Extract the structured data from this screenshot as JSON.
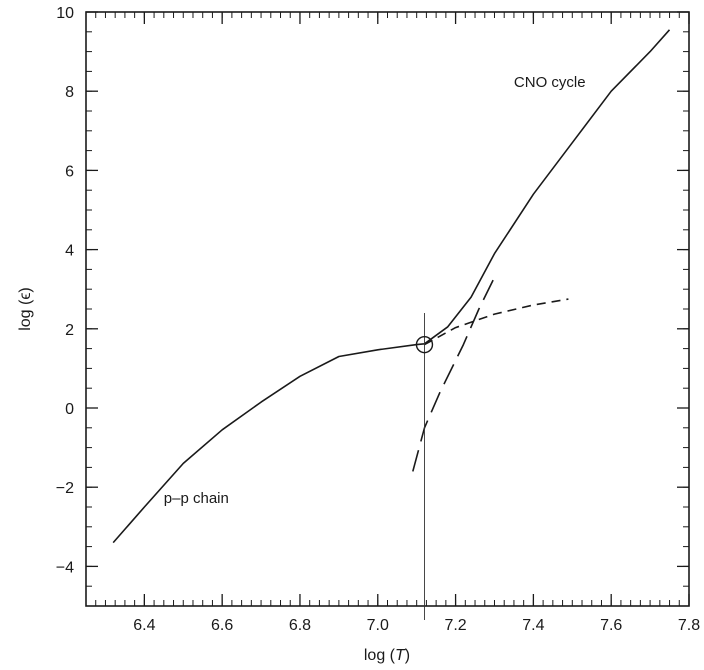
{
  "chart_data": {
    "type": "line",
    "title": "",
    "xlabel": "log (T)",
    "ylabel": "log (ϵ)",
    "xlim": [
      6.25,
      7.8
    ],
    "ylim": [
      -5,
      10
    ],
    "xticks": [
      6.4,
      6.6,
      6.8,
      7.0,
      7.2,
      7.4,
      7.6,
      7.8
    ],
    "xtick_labels": [
      "6.4",
      "6.6",
      "6.8",
      "7.0",
      "7.2",
      "7.4",
      "7.6",
      "7.8"
    ],
    "yticks": [
      -4,
      -2,
      0,
      2,
      4,
      6,
      8,
      10
    ],
    "ytick_labels": [
      "−4",
      "−2",
      "0",
      "2",
      "4",
      "6",
      "8",
      "10"
    ],
    "grid": false,
    "series": [
      {
        "style": "solid",
        "x": [
          6.32,
          6.4,
          6.5,
          6.6,
          6.7,
          6.8,
          6.9,
          7.0,
          7.1,
          7.12,
          7.18,
          7.24,
          7.3,
          7.4,
          7.5,
          7.6,
          7.7,
          7.75
        ],
        "y": [
          -3.4,
          -2.5,
          -1.4,
          -0.55,
          0.15,
          0.8,
          1.3,
          1.47,
          1.6,
          1.62,
          2.05,
          2.8,
          3.9,
          5.4,
          6.7,
          8.0,
          9.0,
          9.55
        ]
      },
      {
        "style": "short-dash",
        "x": [
          7.12,
          7.2,
          7.3,
          7.4,
          7.49
        ],
        "y": [
          1.6,
          2.03,
          2.37,
          2.6,
          2.75
        ]
      },
      {
        "style": "long-dash",
        "x": [
          7.09,
          7.12,
          7.16,
          7.22,
          7.26,
          7.3
        ],
        "y": [
          -1.6,
          -0.5,
          0.4,
          1.6,
          2.5,
          3.3
        ]
      }
    ],
    "crossover": {
      "x": 7.12,
      "y": 1.6
    },
    "annotations": [
      {
        "text": "CNO cycle",
        "x": 7.35,
        "y": 8.1
      },
      {
        "text": "p–p chain",
        "x": 6.45,
        "y": -2.4
      }
    ]
  }
}
